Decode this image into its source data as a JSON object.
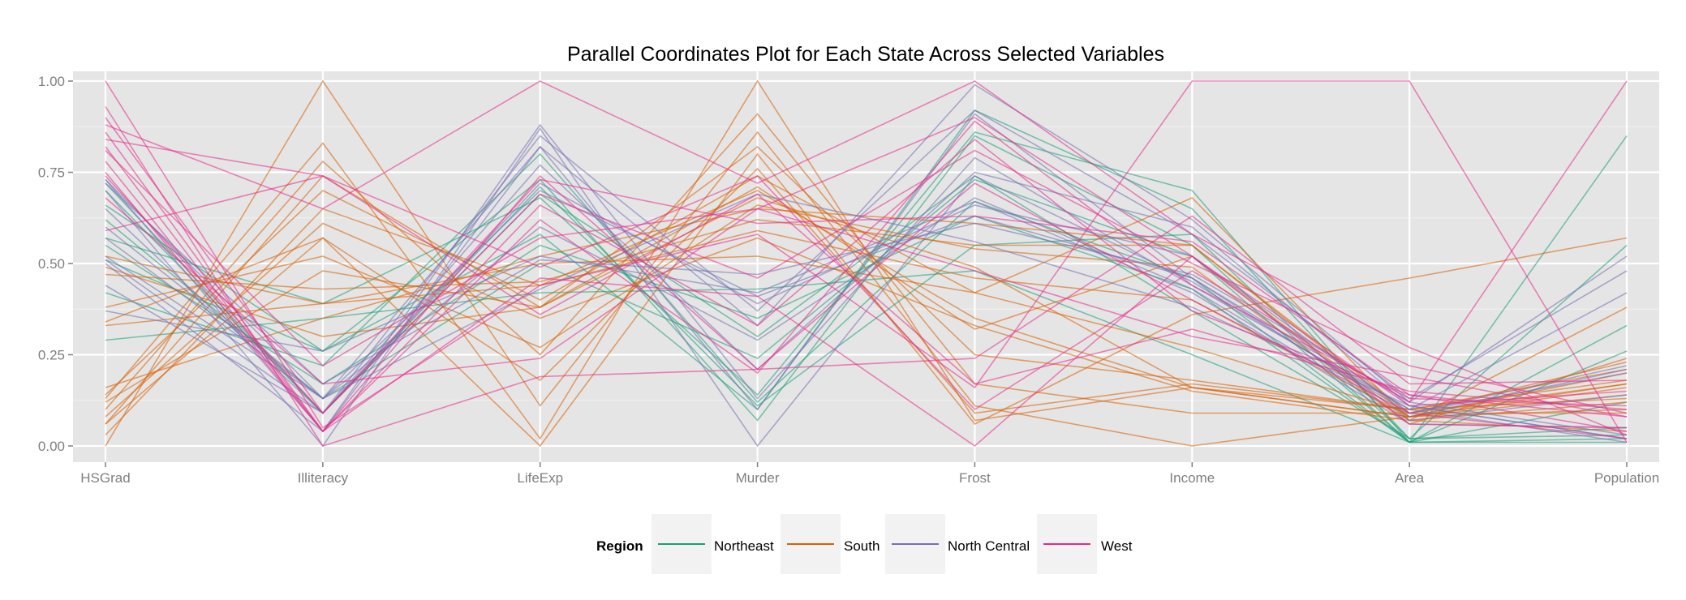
{
  "chart_data": {
    "type": "line",
    "title": "Parallel Coordinates Plot for Each State Across Selected Variables",
    "xlabel": "",
    "ylabel": "",
    "categories": [
      "HSGrad",
      "Illiteracy",
      "LifeExp",
      "Murder",
      "Frost",
      "Income",
      "Area",
      "Population"
    ],
    "ylim": [
      0,
      1
    ],
    "yticks": [
      "0.00",
      "0.25",
      "0.50",
      "0.75",
      "1.00"
    ],
    "ytick_values": [
      0,
      0.25,
      0.5,
      0.75,
      1
    ],
    "grid": true,
    "legend": {
      "title": "Region",
      "position": "bottom",
      "entries": [
        {
          "name": "Northeast",
          "color": "#1b9e77"
        },
        {
          "name": "South",
          "color": "#d95f02"
        },
        {
          "name": "North Central",
          "color": "#7570b3"
        },
        {
          "name": "West",
          "color": "#e7298a"
        }
      ]
    },
    "series": [
      {
        "group": "Northeast",
        "values": [
          0.57,
          0.39,
          0.68,
          0.14,
          0.86,
          0.7,
          0.01,
          0.85
        ]
      },
      {
        "group": "Northeast",
        "values": [
          0.66,
          0.26,
          0.58,
          0.1,
          0.92,
          0.65,
          0.02,
          0.55
        ]
      },
      {
        "group": "Northeast",
        "values": [
          0.51,
          0.26,
          0.73,
          0.07,
          0.85,
          0.55,
          0.01,
          0.33
        ]
      },
      {
        "group": "Northeast",
        "values": [
          0.42,
          0.22,
          0.8,
          0.12,
          0.67,
          0.46,
          0.01,
          0.12
        ]
      },
      {
        "group": "Northeast",
        "values": [
          0.72,
          0.09,
          0.69,
          0.3,
          0.74,
          0.37,
          0.02,
          0.05
        ]
      },
      {
        "group": "Northeast",
        "values": [
          0.7,
          0.09,
          0.71,
          0.11,
          0.55,
          0.58,
          0.02,
          0.03
        ]
      },
      {
        "group": "Northeast",
        "values": [
          0.55,
          0.17,
          0.55,
          0.35,
          0.63,
          0.43,
          0.01,
          0.26
        ]
      },
      {
        "group": "Northeast",
        "values": [
          0.29,
          0.35,
          0.42,
          0.43,
          0.48,
          0.25,
          0.01,
          0.02
        ]
      },
      {
        "group": "Northeast",
        "values": [
          0.62,
          0.13,
          0.5,
          0.24,
          0.73,
          0.52,
          0.01,
          0.01
        ]
      },
      {
        "group": "South",
        "values": [
          0.13,
          0.83,
          0.02,
          1.0,
          0.07,
          0.16,
          0.08,
          0.16
        ]
      },
      {
        "group": "South",
        "values": [
          0.0,
          1.0,
          0.11,
          0.86,
          0.11,
          0.0,
          0.08,
          0.17
        ]
      },
      {
        "group": "South",
        "values": [
          0.1,
          0.78,
          0.25,
          0.91,
          0.17,
          0.09,
          0.09,
          0.09
        ]
      },
      {
        "group": "South",
        "values": [
          0.06,
          0.74,
          0.38,
          0.82,
          0.25,
          0.18,
          0.1,
          0.21
        ]
      },
      {
        "group": "South",
        "values": [
          0.14,
          0.7,
          0.4,
          0.74,
          0.42,
          0.27,
          0.09,
          0.23
        ]
      },
      {
        "group": "South",
        "values": [
          0.03,
          0.65,
          0.44,
          0.7,
          0.35,
          0.16,
          0.1,
          0.13
        ]
      },
      {
        "group": "South",
        "values": [
          0.34,
          0.57,
          0.0,
          0.8,
          0.06,
          0.36,
          0.46,
          0.57
        ]
      },
      {
        "group": "South",
        "values": [
          0.38,
          0.52,
          0.27,
          0.66,
          0.54,
          0.49,
          0.06,
          0.24
        ]
      },
      {
        "group": "South",
        "values": [
          0.12,
          0.48,
          0.38,
          0.68,
          0.49,
          0.16,
          0.08,
          0.1
        ]
      },
      {
        "group": "South",
        "values": [
          0.47,
          0.43,
          0.45,
          0.62,
          0.55,
          0.55,
          0.08,
          0.2
        ]
      },
      {
        "group": "South",
        "values": [
          0.52,
          0.39,
          0.5,
          0.52,
          0.42,
          0.68,
          0.07,
          0.04
        ]
      },
      {
        "group": "South",
        "values": [
          0.08,
          0.61,
          0.35,
          0.57,
          0.33,
          0.15,
          0.07,
          0.12
        ]
      },
      {
        "group": "South",
        "values": [
          0.49,
          0.3,
          0.38,
          0.71,
          0.32,
          0.52,
          0.07,
          0.38
        ]
      },
      {
        "group": "South",
        "values": [
          0.33,
          0.39,
          0.44,
          0.59,
          0.46,
          0.4,
          0.08,
          0.14
        ]
      },
      {
        "group": "South",
        "values": [
          0.16,
          0.35,
          0.52,
          0.65,
          0.61,
          0.55,
          0.09,
          0.17
        ]
      },
      {
        "group": "South",
        "values": [
          0.06,
          0.57,
          0.18,
          0.76,
          0.09,
          0.17,
          0.1,
          0.18
        ]
      },
      {
        "group": "North Central",
        "values": [
          0.52,
          0.13,
          0.82,
          0.33,
          0.99,
          0.62,
          0.12,
          0.52
        ]
      },
      {
        "group": "North Central",
        "values": [
          0.44,
          0.09,
          0.85,
          0.37,
          0.92,
          0.58,
          0.13,
          0.48
        ]
      },
      {
        "group": "North Central",
        "values": [
          0.73,
          0.04,
          0.88,
          0.13,
          0.79,
          0.44,
          0.1,
          0.42
        ]
      },
      {
        "group": "North Central",
        "values": [
          0.7,
          0.0,
          0.87,
          0.0,
          0.74,
          0.45,
          0.09,
          0.22
        ]
      },
      {
        "group": "North Central",
        "values": [
          0.51,
          0.09,
          0.72,
          0.39,
          0.66,
          0.52,
          0.09,
          0.2
        ]
      },
      {
        "group": "North Central",
        "values": [
          0.6,
          0.13,
          0.7,
          0.41,
          0.63,
          0.46,
          0.08,
          0.21
        ]
      },
      {
        "group": "North Central",
        "values": [
          0.37,
          0.26,
          0.52,
          0.42,
          0.67,
          0.42,
          0.06,
          0.05
        ]
      },
      {
        "group": "North Central",
        "values": [
          0.72,
          0.17,
          0.51,
          0.47,
          0.61,
          0.47,
          0.12,
          0.03
        ]
      },
      {
        "group": "North Central",
        "values": [
          0.57,
          0.13,
          0.43,
          0.69,
          0.56,
          0.38,
          0.11,
          0.02
        ]
      },
      {
        "group": "North Central",
        "values": [
          0.5,
          0.04,
          0.82,
          0.1,
          0.91,
          0.46,
          0.1,
          0.01
        ]
      },
      {
        "group": "North Central",
        "values": [
          0.65,
          0.09,
          0.77,
          0.21,
          0.75,
          0.6,
          0.11,
          0.02
        ]
      },
      {
        "group": "North Central",
        "values": [
          0.73,
          0.13,
          0.6,
          0.29,
          0.68,
          0.43,
          0.07,
          0.14
        ]
      },
      {
        "group": "West",
        "values": [
          1.0,
          0.05,
          0.44,
          0.58,
          0.16,
          1.0,
          1.0,
          0.01
        ]
      },
      {
        "group": "West",
        "values": [
          0.93,
          0.0,
          0.19,
          0.21,
          0.24,
          0.63,
          0.17,
          0.18
        ]
      },
      {
        "group": "West",
        "values": [
          0.88,
          0.65,
          1.0,
          0.72,
          1.0,
          0.58,
          0.27,
          0.03
        ]
      },
      {
        "group": "West",
        "values": [
          0.84,
          0.74,
          0.49,
          0.74,
          0.1,
          0.48,
          0.12,
          1.0
        ]
      },
      {
        "group": "West",
        "values": [
          0.81,
          0.22,
          0.57,
          0.65,
          0.9,
          0.52,
          0.11,
          0.15
        ]
      },
      {
        "group": "West",
        "values": [
          0.86,
          0.04,
          0.46,
          0.41,
          0.0,
          0.52,
          0.06,
          0.05
        ]
      },
      {
        "group": "West",
        "values": [
          0.75,
          0.04,
          0.66,
          0.33,
          0.84,
          0.37,
          0.14,
          0.04
        ]
      },
      {
        "group": "West",
        "values": [
          0.74,
          0.09,
          0.69,
          0.46,
          0.81,
          0.5,
          0.22,
          0.09
        ]
      },
      {
        "group": "West",
        "values": [
          0.82,
          0.04,
          0.74,
          0.21,
          0.72,
          0.4,
          0.09,
          0.02
        ]
      },
      {
        "group": "West",
        "values": [
          0.59,
          0.74,
          0.36,
          0.69,
          0.17,
          0.32,
          0.15,
          0.1
        ]
      },
      {
        "group": "West",
        "values": [
          0.9,
          0.09,
          0.73,
          0.61,
          0.63,
          0.56,
          0.14,
          0.08
        ]
      },
      {
        "group": "West",
        "values": [
          0.68,
          0.17,
          0.24,
          0.65,
          0.48,
          0.3,
          0.19,
          0.08
        ]
      },
      {
        "group": "West",
        "values": [
          0.78,
          0.04,
          0.62,
          0.2,
          0.89,
          0.44,
          0.13,
          0.11
        ]
      }
    ]
  }
}
